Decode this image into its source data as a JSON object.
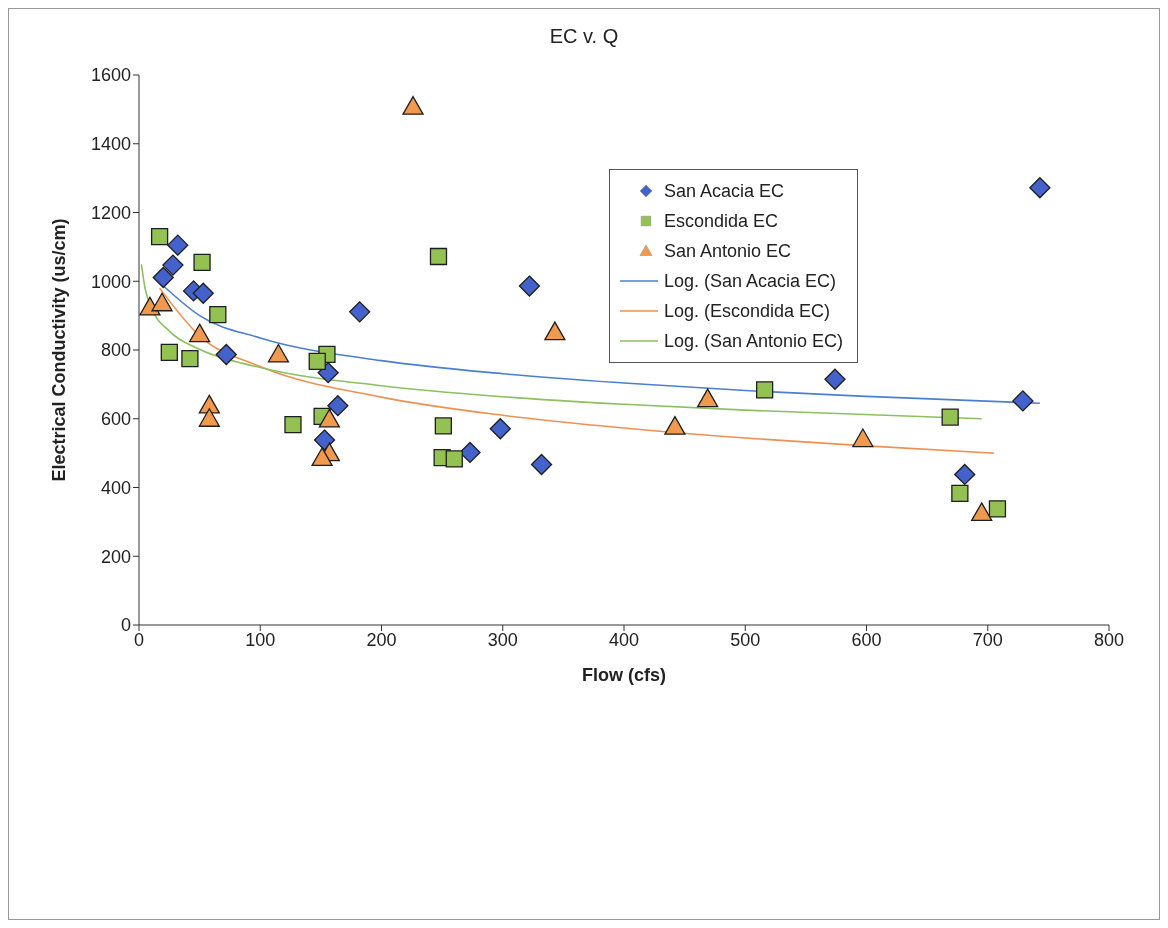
{
  "chart_data": {
    "type": "scatter",
    "title": "EC v. Q",
    "xlabel": "Flow (cfs)",
    "ylabel": "Electrical Conductivity  (us/cm)",
    "xlim": [
      0,
      800
    ],
    "xticks": [
      0,
      100,
      200,
      300,
      400,
      500,
      600,
      700,
      800
    ],
    "ylim": [
      0,
      1600
    ],
    "yticks": [
      0,
      200,
      400,
      600,
      800,
      1000,
      1200,
      1400,
      1600
    ],
    "grid": false,
    "legend": "top right",
    "series": [
      {
        "name": "San Acacia EC",
        "marker": "diamond",
        "color": "#4462cc",
        "x": [
          32,
          28,
          20,
          45,
          53,
          72,
          182,
          156,
          164,
          153,
          322,
          298,
          273,
          332,
          743,
          574,
          729,
          681
        ],
        "values": [
          1105,
          1047,
          1011,
          972,
          965,
          787,
          911,
          734,
          638,
          538,
          986,
          571,
          502,
          467,
          1272,
          715,
          652,
          438
        ]
      },
      {
        "name": "Escondida EC",
        "marker": "square",
        "color": "#93c152",
        "x": [
          17,
          52,
          65,
          25,
          42,
          155,
          147,
          127,
          151,
          247,
          251,
          250,
          260,
          516,
          669,
          677,
          708
        ],
        "values": [
          1130,
          1055,
          903,
          793,
          775,
          787,
          767,
          583,
          607,
          1072,
          579,
          487,
          483,
          684,
          605,
          383,
          338
        ]
      },
      {
        "name": "San Antonio EC",
        "marker": "triangle",
        "color": "#f19a4e",
        "x": [
          226,
          9,
          19,
          50,
          115,
          58,
          58,
          157,
          157,
          151,
          343,
          469,
          442,
          597,
          695
        ],
        "values": [
          1508,
          924,
          936,
          846,
          787,
          639,
          600,
          598,
          500,
          486,
          852,
          657,
          577,
          541,
          326
        ]
      },
      {
        "name": "Log. (San Acacia EC)",
        "type": "line",
        "marker": "none",
        "color": "#4a7fd0",
        "x": [
          20,
          50,
          100,
          200,
          300,
          400,
          500,
          600,
          743
        ],
        "values": [
          987,
          900,
          835,
          769,
          731,
          704,
          682,
          665,
          645
        ]
      },
      {
        "name": "Log. (Escondida EC)",
        "type": "line",
        "marker": "none",
        "color": "#f09050",
        "x": [
          17,
          50,
          100,
          200,
          300,
          400,
          500,
          600,
          705
        ],
        "values": [
          980,
          841,
          752,
          663,
          610,
          573,
          544,
          521,
          500
        ]
      },
      {
        "name": "Log. (San Antonio EC)",
        "type": "line",
        "marker": "none",
        "color": "#8cc060",
        "x": [
          2,
          5,
          10,
          25,
          50,
          100,
          200,
          300,
          400,
          500,
          695
        ],
        "values": [
          1049,
          979,
          925,
          855,
          802,
          749,
          696,
          664,
          642,
          625,
          600
        ]
      }
    ]
  }
}
